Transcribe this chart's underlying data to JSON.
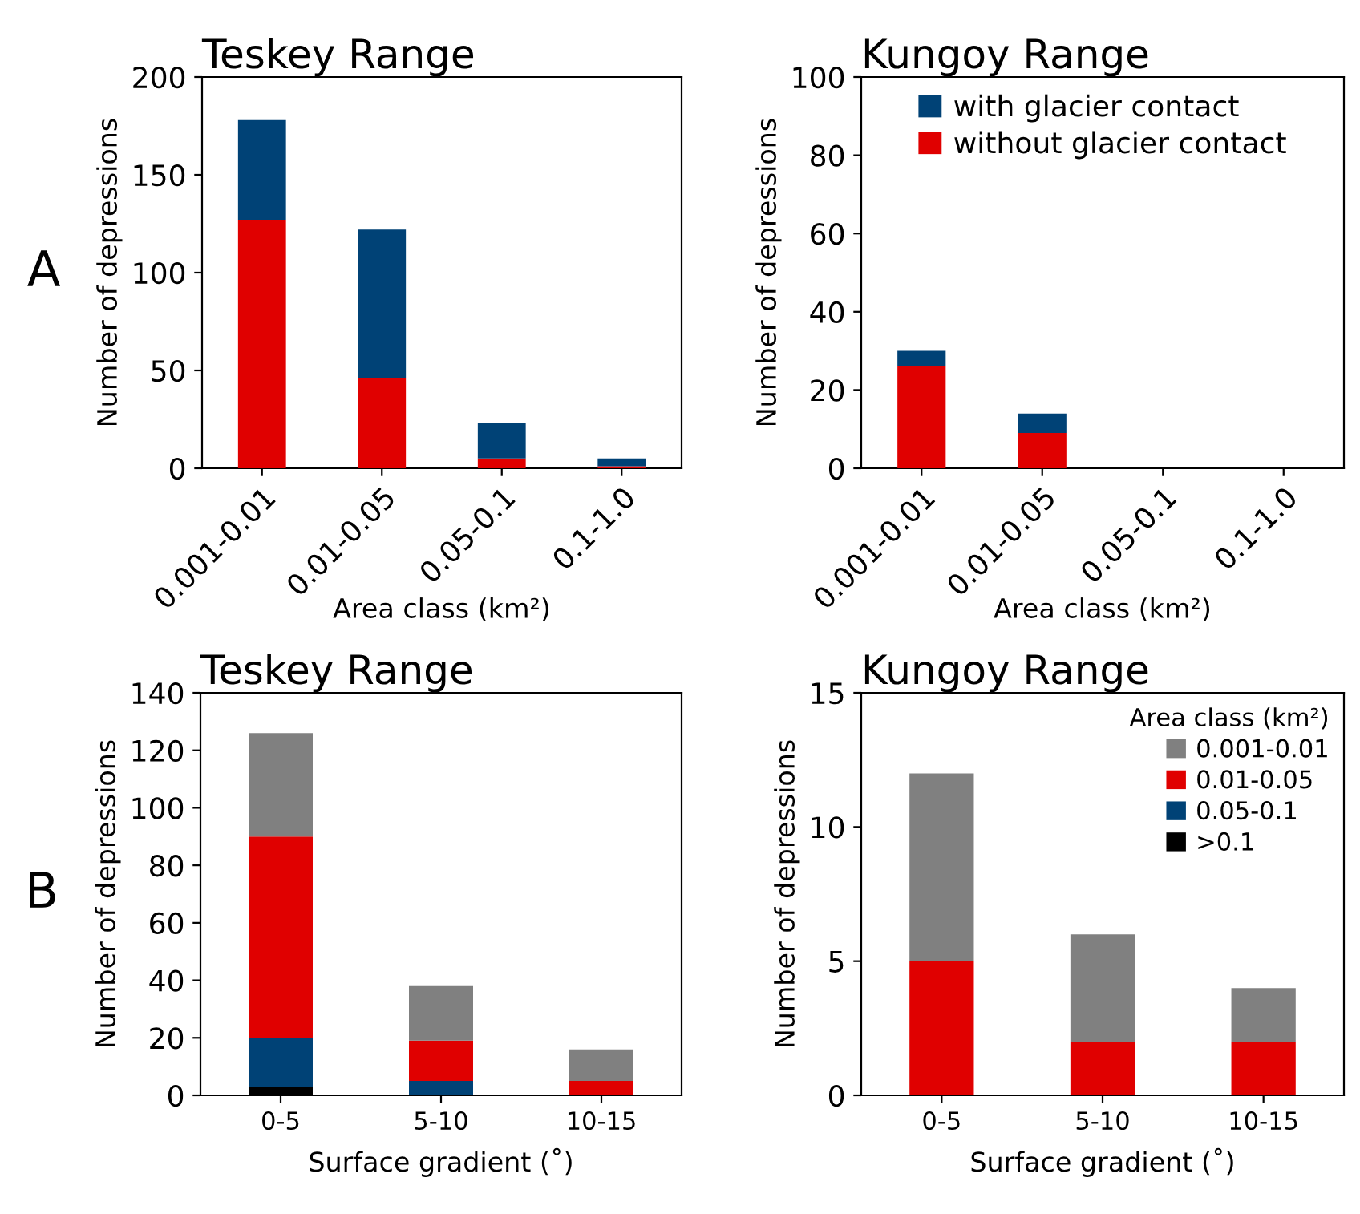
{
  "chart_data": [
    {
      "type": "bar",
      "stacked": true,
      "title": "Teskey Range",
      "xlabel": "Area class (km²)",
      "ylabel": "Number of depressions",
      "annotations": [
        "A"
      ],
      "categories": [
        "0.001-0.01",
        "0.01-0.05",
        "0.05-0.1",
        "0.1-1.0"
      ],
      "ylim": [
        0,
        200
      ],
      "yticks": [
        0,
        50,
        100,
        150,
        200
      ],
      "legend": false,
      "grid": false,
      "series": [
        {
          "color": "#e00000",
          "values": [
            127,
            46,
            5,
            1
          ]
        },
        {
          "color": "#004276",
          "values": [
            51,
            76,
            18,
            4
          ]
        }
      ]
    },
    {
      "type": "bar",
      "stacked": true,
      "title": "Kungoy Range",
      "xlabel": "Area class (km²)",
      "ylabel": "Number of depressions",
      "categories": [
        "0.001-0.01",
        "0.01-0.05",
        "0.05-0.1",
        "0.1-1.0"
      ],
      "ylim": [
        0,
        100
      ],
      "yticks": [
        0,
        20,
        40,
        60,
        80,
        100
      ],
      "legend": "top",
      "grid": false,
      "series": [
        {
          "name": "without glacier contact",
          "color": "#e00000",
          "values": [
            26,
            9,
            0,
            0
          ]
        },
        {
          "name": "with glacier contact",
          "color": "#004276",
          "values": [
            4,
            5,
            0,
            0
          ]
        }
      ]
    },
    {
      "type": "bar",
      "stacked": true,
      "title": "Teskey Range",
      "xlabel": "Surface gradient (˚)",
      "ylabel": "Number of depressions",
      "annotations": [
        "B"
      ],
      "categories": [
        "0-5",
        "5-10",
        "10-15"
      ],
      "ylim": [
        0,
        140
      ],
      "yticks": [
        0,
        20,
        40,
        60,
        80,
        100,
        120,
        140
      ],
      "legend": false,
      "grid": false,
      "series": [
        {
          "color": "#000000",
          "values": [
            3,
            0,
            0
          ]
        },
        {
          "color": "#004276",
          "values": [
            17,
            5,
            0
          ]
        },
        {
          "color": "#e00000",
          "values": [
            70,
            14,
            5
          ]
        },
        {
          "color": "#808080",
          "values": [
            36,
            19,
            11
          ]
        }
      ]
    },
    {
      "type": "bar",
      "stacked": true,
      "title": "Kungoy Range",
      "xlabel": "Surface gradient (˚)",
      "ylabel": "Number of depressions",
      "legend_title": "Area class (km²)",
      "categories": [
        "0-5",
        "5-10",
        "10-15"
      ],
      "ylim": [
        0,
        15
      ],
      "yticks": [
        0,
        5,
        10,
        15
      ],
      "legend": "top right",
      "grid": false,
      "series": [
        {
          "name": ">0.1",
          "color": "#000000",
          "values": [
            0,
            0,
            0
          ]
        },
        {
          "name": "0.05-0.1",
          "color": "#004276",
          "values": [
            0,
            0,
            0
          ]
        },
        {
          "name": "0.01-0.05",
          "color": "#e00000",
          "values": [
            5,
            2,
            2
          ]
        },
        {
          "name": "0.001-0.01",
          "color": "#808080",
          "values": [
            7,
            4,
            2
          ]
        }
      ]
    }
  ]
}
